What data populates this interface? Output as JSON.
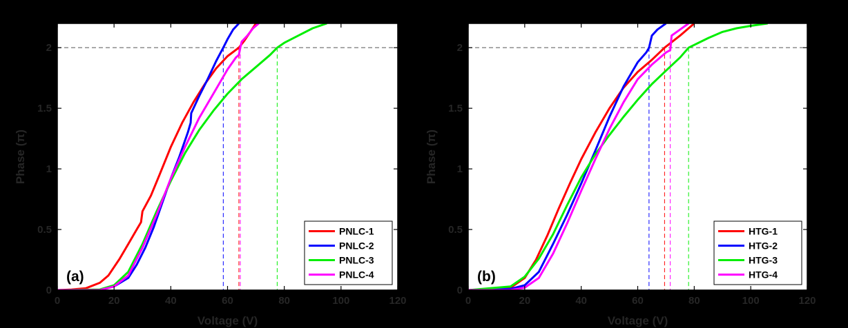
{
  "chart_data": [
    {
      "type": "line",
      "panel_label": "(a)",
      "xlabel": "Voltage (V)",
      "ylabel": "Phase (π)",
      "xlim": [
        0,
        120
      ],
      "ylim": [
        0,
        2.2
      ],
      "xticks": [
        0,
        20,
        40,
        60,
        80,
        100,
        120
      ],
      "yticks": [
        0,
        0.5,
        1,
        1.5,
        2
      ],
      "ytick_labels": [
        "0",
        "0.5",
        "1",
        "1.5",
        "2"
      ],
      "reference_phase": 2,
      "legend_position": "bottom-right",
      "series": [
        {
          "name": "PNLC-1",
          "color": "#ff0000",
          "threshold_voltage": 64,
          "x": [
            0,
            5,
            10,
            15,
            18,
            22,
            25,
            28,
            29.5,
            30,
            33,
            36,
            40,
            44,
            48,
            52,
            56,
            60,
            64,
            66,
            68,
            70
          ],
          "y": [
            0,
            0.005,
            0.015,
            0.06,
            0.12,
            0.26,
            0.38,
            0.5,
            0.56,
            0.65,
            0.78,
            0.95,
            1.18,
            1.38,
            1.55,
            1.7,
            1.83,
            1.93,
            2.0,
            2.06,
            2.13,
            2.2
          ]
        },
        {
          "name": "PNLC-2",
          "color": "#0000ff",
          "threshold_voltage": 58.5,
          "x": [
            0,
            15,
            20,
            25,
            28,
            31,
            34,
            37,
            40,
            43,
            46,
            47,
            47.2,
            50,
            53,
            56,
            58.5,
            60,
            62,
            64
          ],
          "y": [
            0,
            0,
            0.03,
            0.1,
            0.21,
            0.35,
            0.52,
            0.72,
            0.92,
            1.1,
            1.3,
            1.38,
            1.46,
            1.6,
            1.74,
            1.89,
            2.0,
            2.07,
            2.15,
            2.2
          ]
        },
        {
          "name": "PNLC-3",
          "color": "#00ee00",
          "threshold_voltage": 77.5,
          "x": [
            0,
            15,
            20,
            25,
            30,
            35,
            40,
            45,
            50,
            55,
            60,
            65,
            70,
            75,
            77.5,
            80,
            85,
            90,
            95
          ],
          "y": [
            0,
            0.005,
            0.04,
            0.15,
            0.38,
            0.65,
            0.9,
            1.13,
            1.32,
            1.48,
            1.62,
            1.74,
            1.84,
            1.94,
            2.0,
            2.04,
            2.1,
            2.16,
            2.2
          ]
        },
        {
          "name": "PNLC-4",
          "color": "#ff00ff",
          "threshold_voltage": 64.5,
          "x": [
            0,
            15,
            20,
            25,
            30,
            35,
            40,
            45,
            50,
            55,
            60,
            63,
            64,
            64.5,
            65,
            67,
            69,
            71
          ],
          "y": [
            0,
            0,
            0.03,
            0.12,
            0.35,
            0.62,
            0.92,
            1.18,
            1.42,
            1.62,
            1.82,
            1.92,
            1.94,
            2.0,
            2.05,
            2.1,
            2.16,
            2.2
          ]
        }
      ]
    },
    {
      "type": "line",
      "panel_label": "(b)",
      "xlabel": "Voltage (V)",
      "ylabel": "Phase (π)",
      "xlim": [
        0,
        120
      ],
      "ylim": [
        0,
        2.2
      ],
      "xticks": [
        0,
        20,
        40,
        60,
        80,
        100,
        120
      ],
      "yticks": [
        0,
        0.5,
        1,
        1.5,
        2
      ],
      "ytick_labels": [
        "0",
        "0.5",
        "1",
        "1.5",
        "2"
      ],
      "reference_phase": 2,
      "legend_position": "bottom-right",
      "series": [
        {
          "name": "HTG-1",
          "color": "#ff0000",
          "threshold_voltage": 69.5,
          "x": [
            0,
            15,
            20,
            24,
            28,
            32,
            36,
            40,
            45,
            50,
            55,
            60,
            65,
            69.5,
            75,
            80
          ],
          "y": [
            0,
            0.02,
            0.1,
            0.25,
            0.45,
            0.67,
            0.88,
            1.08,
            1.3,
            1.5,
            1.67,
            1.8,
            1.9,
            2.0,
            2.1,
            2.2
          ]
        },
        {
          "name": "HTG-2",
          "color": "#0000ff",
          "threshold_voltage": 64,
          "x": [
            0,
            15,
            20,
            25,
            30,
            35,
            40,
            45,
            50,
            55,
            60,
            63,
            64,
            65,
            67,
            70
          ],
          "y": [
            0,
            0.01,
            0.04,
            0.15,
            0.38,
            0.62,
            0.88,
            1.15,
            1.43,
            1.68,
            1.88,
            1.96,
            2.0,
            2.1,
            2.15,
            2.2
          ]
        },
        {
          "name": "HTG-3",
          "color": "#00ee00",
          "threshold_voltage": 78,
          "x": [
            0,
            15,
            20,
            25,
            30,
            35,
            40,
            45,
            50,
            55,
            60,
            65,
            70,
            75,
            78,
            85,
            90,
            95,
            100,
            106
          ],
          "y": [
            0,
            0.03,
            0.11,
            0.26,
            0.46,
            0.7,
            0.93,
            1.12,
            1.28,
            1.43,
            1.57,
            1.7,
            1.81,
            1.92,
            2.0,
            2.08,
            2.13,
            2.16,
            2.18,
            2.2
          ]
        },
        {
          "name": "HTG-4",
          "color": "#ff00ff",
          "threshold_voltage": 71.5,
          "x": [
            0,
            15,
            20,
            25,
            30,
            35,
            40,
            45,
            50,
            55,
            60,
            65,
            70,
            71.5,
            72,
            75,
            78
          ],
          "y": [
            0,
            0,
            0.02,
            0.1,
            0.3,
            0.55,
            0.82,
            1.08,
            1.33,
            1.55,
            1.74,
            1.86,
            1.96,
            1.98,
            2.1,
            2.15,
            2.2
          ]
        }
      ]
    }
  ]
}
